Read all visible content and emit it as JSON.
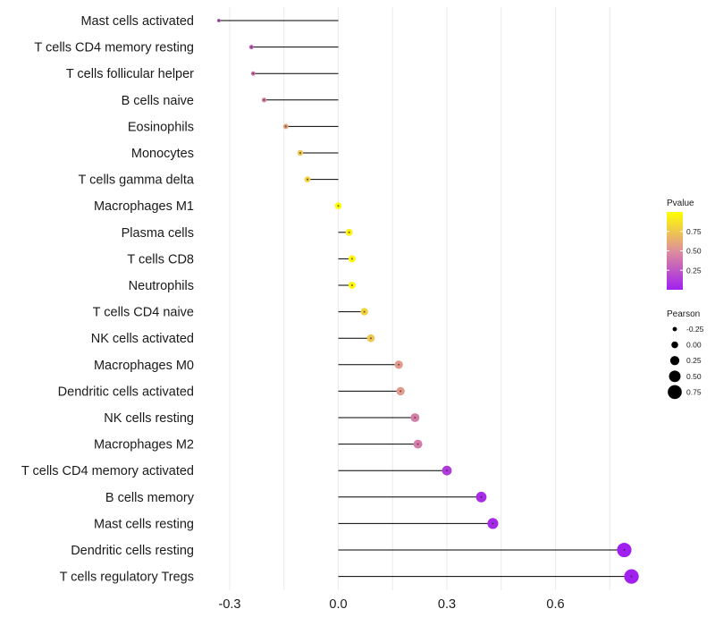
{
  "chart_data": {
    "type": "lollipop",
    "title": "",
    "xlabel": "",
    "ylabel": "",
    "xlim": [
      -0.39,
      0.8
    ],
    "xticks": [
      -0.3,
      0.0,
      0.3,
      0.6
    ],
    "xtick_labels": [
      "-0.3",
      "0.0",
      "0.3",
      "0.6"
    ],
    "grid": "vertical",
    "categories": [
      "Mast cells activated",
      "T cells CD4 memory resting",
      "T cells follicular helper",
      "B cells naive",
      "Eosinophils",
      "Monocytes",
      "T cells gamma delta",
      "Macrophages M1",
      "Plasma cells",
      "T cells CD8",
      "Neutrophils",
      "T cells CD4 naive",
      "NK cells activated",
      "Macrophages M0",
      "Dendritic cells activated",
      "NK cells resting",
      "Macrophages M2",
      "T cells CD4 memory activated",
      "B cells memory",
      "Mast cells resting",
      "Dendritic cells resting",
      "T cells regulatory  Tregs"
    ],
    "values": [
      -0.33,
      -0.24,
      -0.235,
      -0.205,
      -0.145,
      -0.105,
      -0.085,
      0.0,
      0.03,
      0.038,
      0.038,
      0.072,
      0.09,
      0.167,
      0.172,
      0.212,
      0.22,
      0.3,
      0.395,
      0.427,
      0.79,
      0.81
    ],
    "pvalues": [
      0.3,
      0.3,
      0.4,
      0.45,
      0.6,
      0.75,
      0.8,
      1.0,
      0.95,
      0.97,
      0.97,
      0.8,
      0.75,
      0.55,
      0.55,
      0.42,
      0.42,
      0.12,
      0.06,
      0.05,
      0.0,
      0.0
    ],
    "colorbar": {
      "title": "Pvalue",
      "ticks": [
        0.25,
        0.5,
        0.75
      ],
      "tick_labels": [
        "0.25",
        "0.50",
        "0.75"
      ],
      "range": [
        0.0,
        1.0
      ],
      "low_color": "#a020f0",
      "mid_color": "#de8f9b",
      "high_color": "#ffff00"
    },
    "size_legend": {
      "title": "Pearson",
      "values": [
        -0.25,
        0.0,
        0.25,
        0.5,
        0.75
      ],
      "labels": [
        "-0.25",
        "0.00",
        "0.25",
        "0.50",
        "0.75"
      ]
    },
    "colors": {
      "segment": "#000000",
      "grid": "#ebebeb",
      "point_center": "#3a1a3a"
    }
  }
}
